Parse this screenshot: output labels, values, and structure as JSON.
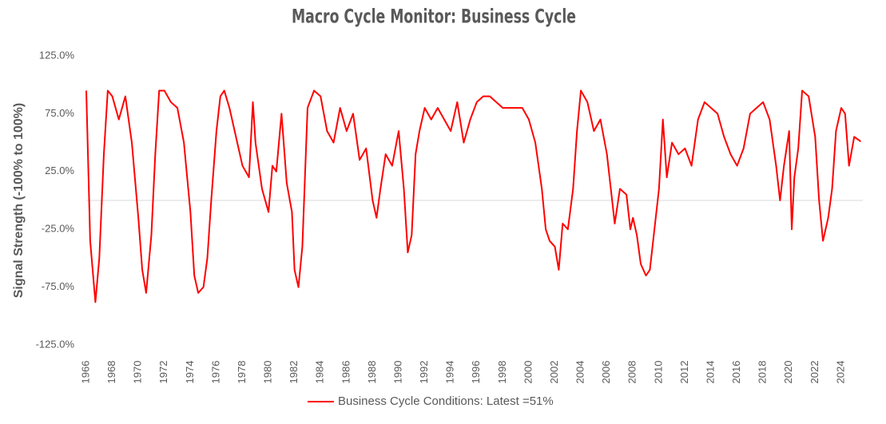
{
  "chart_data": {
    "type": "line",
    "title": "Macro Cycle Monitor: Business Cycle",
    "y_label": "Signal Strength (-100% to 100%)",
    "legend": "bottom",
    "xlim": [
      1966,
      2025.6
    ],
    "xticks": [
      1966,
      1968,
      1970,
      1972,
      1974,
      1976,
      1978,
      1980,
      1982,
      1984,
      1986,
      1988,
      1990,
      1992,
      1994,
      1996,
      1998,
      2000,
      2002,
      2004,
      2006,
      2008,
      2010,
      2012,
      2014,
      2016,
      2018,
      2020,
      2022,
      2024
    ],
    "ylim": [
      -125,
      125
    ],
    "yticks": [
      {
        "value": -125,
        "label": "-125.0%"
      },
      {
        "value": -75,
        "label": "-75.0%"
      },
      {
        "value": -25,
        "label": "-25.0%"
      },
      {
        "value": 25,
        "label": "25.0%"
      },
      {
        "value": 75,
        "label": "75.0%"
      },
      {
        "value": 125,
        "label": "125.0%"
      }
    ],
    "x": [
      1966,
      1966.3,
      1966.7,
      1967,
      1967.35,
      1967.65,
      1968,
      1968.5,
      1969,
      1969.5,
      1970,
      1970.3,
      1970.6,
      1971,
      1971.3,
      1971.6,
      1972,
      1972.5,
      1973,
      1973.5,
      1974,
      1974.3,
      1974.6,
      1975,
      1975.3,
      1975.6,
      1976,
      1976.3,
      1976.6,
      1977,
      1977.5,
      1978,
      1978.5,
      1978.8,
      1979,
      1979.5,
      1980,
      1980.3,
      1980.6,
      1981,
      1981.4,
      1981.8,
      1982,
      1982.3,
      1982.6,
      1983,
      1983.5,
      1984,
      1984.5,
      1985,
      1985.5,
      1986,
      1986.5,
      1987,
      1987.5,
      1988,
      1988.3,
      1988.6,
      1989,
      1989.5,
      1990,
      1990.4,
      1990.7,
      1991,
      1991.3,
      1991.6,
      1992,
      1992.5,
      1993,
      1993.5,
      1994,
      1994.5,
      1995,
      1995.5,
      1996,
      1996.5,
      1997,
      1997.5,
      1998,
      1998.5,
      1999,
      1999.5,
      2000,
      2000.5,
      2001,
      2001.3,
      2001.6,
      2002,
      2002.3,
      2002.6,
      2003,
      2003.4,
      2003.7,
      2004,
      2004.5,
      2005,
      2005.5,
      2006,
      2006.3,
      2006.6,
      2007,
      2007.5,
      2007.8,
      2008,
      2008.3,
      2008.6,
      2009,
      2009.3,
      2009.6,
      2010,
      2010.3,
      2010.6,
      2011,
      2011.5,
      2012,
      2012.5,
      2013,
      2013.5,
      2014,
      2014.5,
      2015,
      2015.5,
      2016,
      2016.5,
      2017,
      2017.5,
      2018,
      2018.5,
      2019,
      2019.3,
      2019.6,
      2020,
      2020.2,
      2020.4,
      2020.7,
      2021,
      2021.5,
      2022,
      2022.3,
      2022.6,
      2023,
      2023.3,
      2023.6,
      2024,
      2024.3,
      2024.6,
      2025,
      2025.5
    ],
    "series": [
      {
        "name": "Business Cycle Conditions: Latest =51%",
        "color": "#ff0000",
        "values": [
          95,
          -35,
          -88,
          -50,
          40,
          95,
          90,
          70,
          90,
          50,
          -15,
          -60,
          -80,
          -30,
          40,
          95,
          95,
          85,
          80,
          50,
          -10,
          -65,
          -80,
          -75,
          -50,
          0,
          60,
          90,
          95,
          80,
          55,
          30,
          20,
          85,
          50,
          10,
          -10,
          30,
          25,
          75,
          15,
          -10,
          -60,
          -75,
          -40,
          80,
          95,
          90,
          60,
          50,
          80,
          60,
          75,
          35,
          45,
          0,
          -15,
          10,
          40,
          30,
          60,
          10,
          -45,
          -30,
          40,
          60,
          80,
          70,
          80,
          70,
          60,
          85,
          50,
          70,
          85,
          90,
          90,
          85,
          80,
          80,
          80,
          80,
          70,
          50,
          10,
          -25,
          -35,
          -40,
          -60,
          -20,
          -25,
          10,
          60,
          95,
          85,
          60,
          70,
          40,
          10,
          -20,
          10,
          5,
          -25,
          -15,
          -30,
          -55,
          -65,
          -60,
          -30,
          10,
          70,
          20,
          50,
          40,
          45,
          30,
          70,
          85,
          80,
          75,
          55,
          40,
          30,
          45,
          75,
          80,
          85,
          70,
          30,
          0,
          30,
          60,
          -25,
          20,
          45,
          95,
          90,
          55,
          0,
          -35,
          -15,
          10,
          60,
          80,
          75,
          30,
          55,
          51
        ]
      }
    ]
  }
}
